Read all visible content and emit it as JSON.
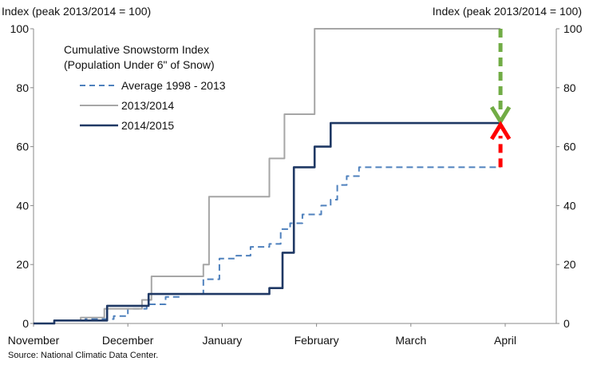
{
  "chart_data": {
    "type": "line",
    "title": "Cumulative Snowstorm Index",
    "subtitle": "(Population Under 6\" of Snow)",
    "ylabel_left": "Index (peak 2013/2014 = 100)",
    "ylabel_right": "Index (peak 2013/2014 = 100)",
    "source": "Source: National Climatic Data Center.",
    "ylim": [
      0,
      100
    ],
    "yticks": [
      0,
      20,
      40,
      60,
      80,
      100
    ],
    "xlim": [
      0,
      5.5
    ],
    "xticks": [
      {
        "label": "November",
        "x": 0
      },
      {
        "label": "December",
        "x": 1
      },
      {
        "label": "January",
        "x": 2
      },
      {
        "label": "February",
        "x": 3
      },
      {
        "label": "March",
        "x": 4
      },
      {
        "label": "April",
        "x": 5
      }
    ],
    "legend_position": "top-left",
    "series": [
      {
        "name": "Average 1998 - 2013",
        "color": "#4f81bd",
        "dash": true,
        "points": [
          [
            0,
            0
          ],
          [
            0.22,
            0
          ],
          [
            0.22,
            1
          ],
          [
            0.55,
            1
          ],
          [
            0.55,
            1.5
          ],
          [
            0.85,
            1.5
          ],
          [
            0.85,
            2.5
          ],
          [
            1.0,
            2.5
          ],
          [
            1.0,
            5
          ],
          [
            1.2,
            5
          ],
          [
            1.2,
            6.5
          ],
          [
            1.4,
            6.5
          ],
          [
            1.4,
            9
          ],
          [
            1.55,
            9
          ],
          [
            1.55,
            10
          ],
          [
            1.8,
            10
          ],
          [
            1.8,
            15
          ],
          [
            1.97,
            15
          ],
          [
            1.97,
            22
          ],
          [
            2.15,
            22
          ],
          [
            2.15,
            23
          ],
          [
            2.3,
            23
          ],
          [
            2.3,
            26
          ],
          [
            2.5,
            26
          ],
          [
            2.5,
            27
          ],
          [
            2.62,
            27
          ],
          [
            2.62,
            32
          ],
          [
            2.72,
            32
          ],
          [
            2.72,
            34
          ],
          [
            2.85,
            34
          ],
          [
            2.85,
            37
          ],
          [
            3.05,
            37
          ],
          [
            3.05,
            40
          ],
          [
            3.15,
            40
          ],
          [
            3.15,
            42
          ],
          [
            3.22,
            42
          ],
          [
            3.22,
            47
          ],
          [
            3.32,
            47
          ],
          [
            3.32,
            50
          ],
          [
            3.45,
            50
          ],
          [
            3.45,
            53
          ],
          [
            4.95,
            53
          ]
        ]
      },
      {
        "name": "2013/2014",
        "color": "#a6a6a6",
        "dash": false,
        "points": [
          [
            0,
            0
          ],
          [
            0.22,
            0
          ],
          [
            0.22,
            1
          ],
          [
            0.5,
            1
          ],
          [
            0.5,
            2
          ],
          [
            0.75,
            2
          ],
          [
            0.75,
            5
          ],
          [
            1.15,
            5
          ],
          [
            1.15,
            8
          ],
          [
            1.25,
            8
          ],
          [
            1.25,
            16
          ],
          [
            1.8,
            16
          ],
          [
            1.8,
            20
          ],
          [
            1.86,
            20
          ],
          [
            1.86,
            43
          ],
          [
            2.5,
            43
          ],
          [
            2.5,
            56
          ],
          [
            2.66,
            56
          ],
          [
            2.66,
            71
          ],
          [
            2.98,
            71
          ],
          [
            2.98,
            100
          ],
          [
            4.95,
            100
          ]
        ]
      },
      {
        "name": "2014/2015",
        "color": "#1f3864",
        "dash": false,
        "points": [
          [
            0,
            0
          ],
          [
            0.22,
            0
          ],
          [
            0.22,
            1
          ],
          [
            0.78,
            1
          ],
          [
            0.78,
            6
          ],
          [
            1.22,
            6
          ],
          [
            1.22,
            10
          ],
          [
            2.5,
            10
          ],
          [
            2.5,
            12
          ],
          [
            2.64,
            12
          ],
          [
            2.64,
            24
          ],
          [
            2.76,
            24
          ],
          [
            2.76,
            53
          ],
          [
            2.98,
            53
          ],
          [
            2.98,
            60
          ],
          [
            3.15,
            60
          ],
          [
            3.15,
            68
          ],
          [
            4.95,
            68
          ]
        ]
      }
    ],
    "annotations": [
      {
        "type": "arrow-down",
        "color": "#71ac45",
        "from": 100,
        "to": 68,
        "x": 4.95
      },
      {
        "type": "arrow-up",
        "color": "#ff0000",
        "from": 53,
        "to": 68,
        "x": 4.95
      }
    ]
  }
}
